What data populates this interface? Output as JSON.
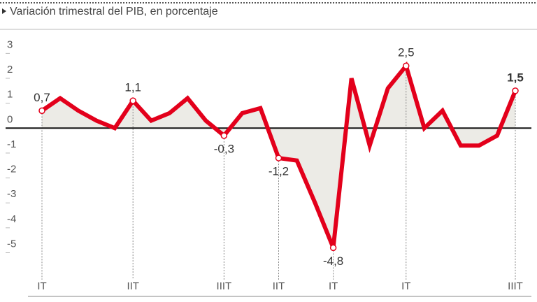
{
  "chart_data": {
    "type": "line",
    "title": "Variación trimestral del PIB, en porcentaje",
    "categories": [
      "IT",
      null,
      null,
      null,
      null,
      "IIT",
      null,
      null,
      null,
      null,
      "IIIT",
      null,
      null,
      "IIT",
      null,
      null,
      "IT",
      null,
      null,
      null,
      "IT",
      null,
      null,
      null,
      null,
      null,
      "IIIT"
    ],
    "series": [
      {
        "color": "#e3001b",
        "values": [
          0.7,
          1.2,
          0.7,
          0.3,
          0.0,
          1.1,
          0.3,
          0.6,
          1.2,
          0.3,
          -0.3,
          0.6,
          0.8,
          -1.2,
          -1.3,
          -3.0,
          -4.8,
          2.0,
          -0.7,
          1.6,
          2.5,
          0.0,
          0.7,
          -0.7,
          -0.7,
          -0.3,
          1.5
        ],
        "value_labels": [
          "0,7",
          null,
          null,
          null,
          null,
          "1,1",
          null,
          null,
          null,
          null,
          "-0,3",
          null,
          null,
          "-1,2",
          null,
          null,
          "-4,8",
          null,
          null,
          null,
          "2,5",
          null,
          null,
          null,
          null,
          null,
          "1,5"
        ]
      }
    ],
    "area_color": "#ecebe6",
    "ylim": [
      -5.8,
      3.6
    ],
    "yticks": [
      -5,
      -4,
      -3,
      -2,
      -1,
      0,
      1,
      2,
      3
    ]
  }
}
